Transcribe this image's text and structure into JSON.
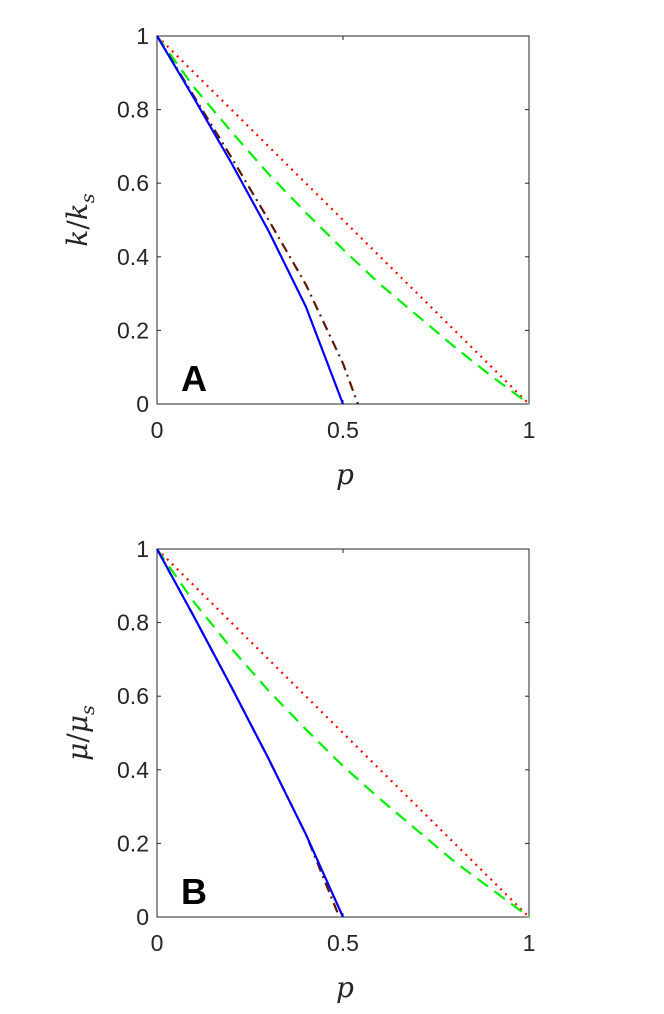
{
  "chart_data": [
    {
      "type": "line",
      "panel_label": "A",
      "xlabel": "p",
      "ylabel": {
        "base": "k",
        "sub_base": "k",
        "subscript": "s"
      },
      "xlim": [
        0,
        1
      ],
      "ylim": [
        0,
        1
      ],
      "xticks": [
        "0",
        "0.5",
        "1"
      ],
      "yticks": [
        "0",
        "0.2",
        "0.4",
        "0.6",
        "0.8",
        "1"
      ],
      "grid": false,
      "series": [
        {
          "style": "dotted",
          "color": "#ff0000",
          "x": [
            0,
            1
          ],
          "y": [
            1,
            0
          ]
        },
        {
          "style": "dashed",
          "color": "#00ee00",
          "x": [
            0,
            0.1,
            0.2,
            0.3,
            0.4,
            0.5,
            0.6,
            0.7,
            0.8,
            0.9,
            1.0
          ],
          "y": [
            1,
            0.86,
            0.74,
            0.625,
            0.52,
            0.42,
            0.325,
            0.24,
            0.155,
            0.075,
            0
          ]
        },
        {
          "style": "dashdot",
          "color": "#5c1a00",
          "x": [
            0,
            0.1,
            0.2,
            0.3,
            0.4,
            0.5,
            0.54
          ],
          "y": [
            1,
            0.835,
            0.67,
            0.5,
            0.325,
            0.11,
            0
          ]
        },
        {
          "style": "solid",
          "color": "#0000ff",
          "x": [
            0,
            0.1,
            0.2,
            0.3,
            0.4,
            0.5
          ],
          "y": [
            1,
            0.83,
            0.655,
            0.47,
            0.265,
            0
          ]
        }
      ]
    },
    {
      "type": "line",
      "panel_label": "B",
      "xlabel": "p",
      "ylabel": {
        "base": "μ",
        "sub_base": "μ",
        "subscript": "s"
      },
      "xlim": [
        0,
        1
      ],
      "ylim": [
        0,
        1
      ],
      "xticks": [
        "0",
        "0.5",
        "1"
      ],
      "yticks": [
        "0",
        "0.2",
        "0.4",
        "0.6",
        "0.8",
        "1"
      ],
      "grid": false,
      "series": [
        {
          "style": "dotted",
          "color": "#ff0000",
          "x": [
            0,
            1
          ],
          "y": [
            1,
            0
          ]
        },
        {
          "style": "dashed",
          "color": "#00ee00",
          "x": [
            0,
            0.1,
            0.2,
            0.3,
            0.4,
            0.5,
            0.6,
            0.7,
            0.8,
            0.9,
            1.0
          ],
          "y": [
            1,
            0.855,
            0.73,
            0.615,
            0.51,
            0.41,
            0.32,
            0.235,
            0.15,
            0.075,
            0
          ]
        },
        {
          "style": "dashdot",
          "color": "#5c1a00",
          "x": [
            0,
            0.1,
            0.2,
            0.3,
            0.4,
            0.49
          ],
          "y": [
            1,
            0.815,
            0.625,
            0.43,
            0.225,
            0
          ]
        },
        {
          "style": "solid",
          "color": "#0000ff",
          "x": [
            0,
            0.1,
            0.2,
            0.3,
            0.4,
            0.5
          ],
          "y": [
            1,
            0.815,
            0.625,
            0.43,
            0.225,
            0
          ]
        }
      ]
    }
  ]
}
